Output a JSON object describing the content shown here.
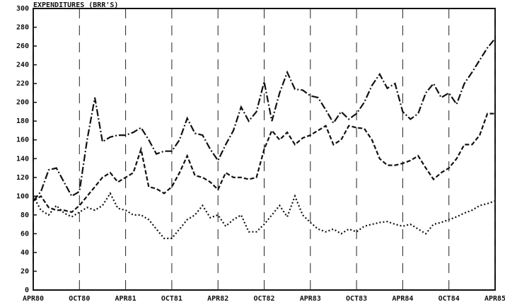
{
  "chart_data": {
    "type": "line",
    "title": "EXPENDITURES (BRR'S)",
    "categories": [
      "APR80",
      null,
      null,
      null,
      null,
      null,
      "OCT80",
      null,
      null,
      null,
      null,
      null,
      "APR81",
      null,
      null,
      null,
      null,
      null,
      "OCT81",
      null,
      null,
      null,
      null,
      null,
      "APR82",
      null,
      null,
      null,
      null,
      null,
      "OCT82",
      null,
      null,
      null,
      null,
      null,
      "APR83",
      null,
      null,
      null,
      null,
      null,
      "OCT83",
      null,
      null,
      null,
      null,
      null,
      "APR84",
      null,
      null,
      null,
      null,
      null,
      "OCT84",
      null,
      null,
      null,
      null,
      null,
      "APR85"
    ],
    "series": [
      {
        "color": "#111111",
        "dash": "dashdot",
        "values": [
          95,
          105,
          128,
          130,
          115,
          100,
          105,
          160,
          205,
          158,
          163,
          165,
          165,
          168,
          173,
          160,
          145,
          148,
          148,
          160,
          183,
          167,
          165,
          150,
          138,
          155,
          170,
          195,
          180,
          190,
          222,
          180,
          210,
          232,
          214,
          213,
          207,
          205,
          192,
          178,
          190,
          182,
          188,
          200,
          218,
          230,
          215,
          220,
          190,
          182,
          188,
          210,
          220,
          205,
          210,
          198,
          220,
          232,
          245,
          258,
          268
        ]
      },
      {
        "color": "#111111",
        "dash": "dashed",
        "values": [
          95,
          100,
          88,
          85,
          85,
          83,
          90,
          100,
          110,
          120,
          125,
          115,
          120,
          125,
          150,
          110,
          108,
          103,
          110,
          125,
          143,
          122,
          120,
          115,
          107,
          125,
          120,
          120,
          118,
          120,
          150,
          170,
          160,
          168,
          155,
          162,
          165,
          170,
          175,
          155,
          160,
          175,
          173,
          172,
          160,
          140,
          133,
          133,
          135,
          138,
          143,
          130,
          118,
          125,
          130,
          140,
          155,
          155,
          165,
          188,
          188
        ]
      },
      {
        "color": "#111111",
        "dash": "dotted",
        "values": [
          100,
          85,
          80,
          90,
          82,
          78,
          83,
          88,
          85,
          90,
          103,
          87,
          85,
          80,
          80,
          75,
          65,
          55,
          55,
          65,
          75,
          80,
          90,
          77,
          80,
          68,
          75,
          80,
          62,
          62,
          70,
          80,
          90,
          78,
          100,
          80,
          72,
          65,
          62,
          65,
          60,
          65,
          62,
          68,
          70,
          72,
          73,
          70,
          68,
          70,
          65,
          60,
          70,
          72,
          75,
          78,
          82,
          85,
          90,
          92,
          95
        ]
      }
    ],
    "ylim": [
      0,
      300
    ],
    "yticks": [
      0,
      20,
      40,
      60,
      80,
      100,
      120,
      140,
      160,
      180,
      200,
      220,
      240,
      260,
      280,
      300
    ],
    "grid": true
  }
}
